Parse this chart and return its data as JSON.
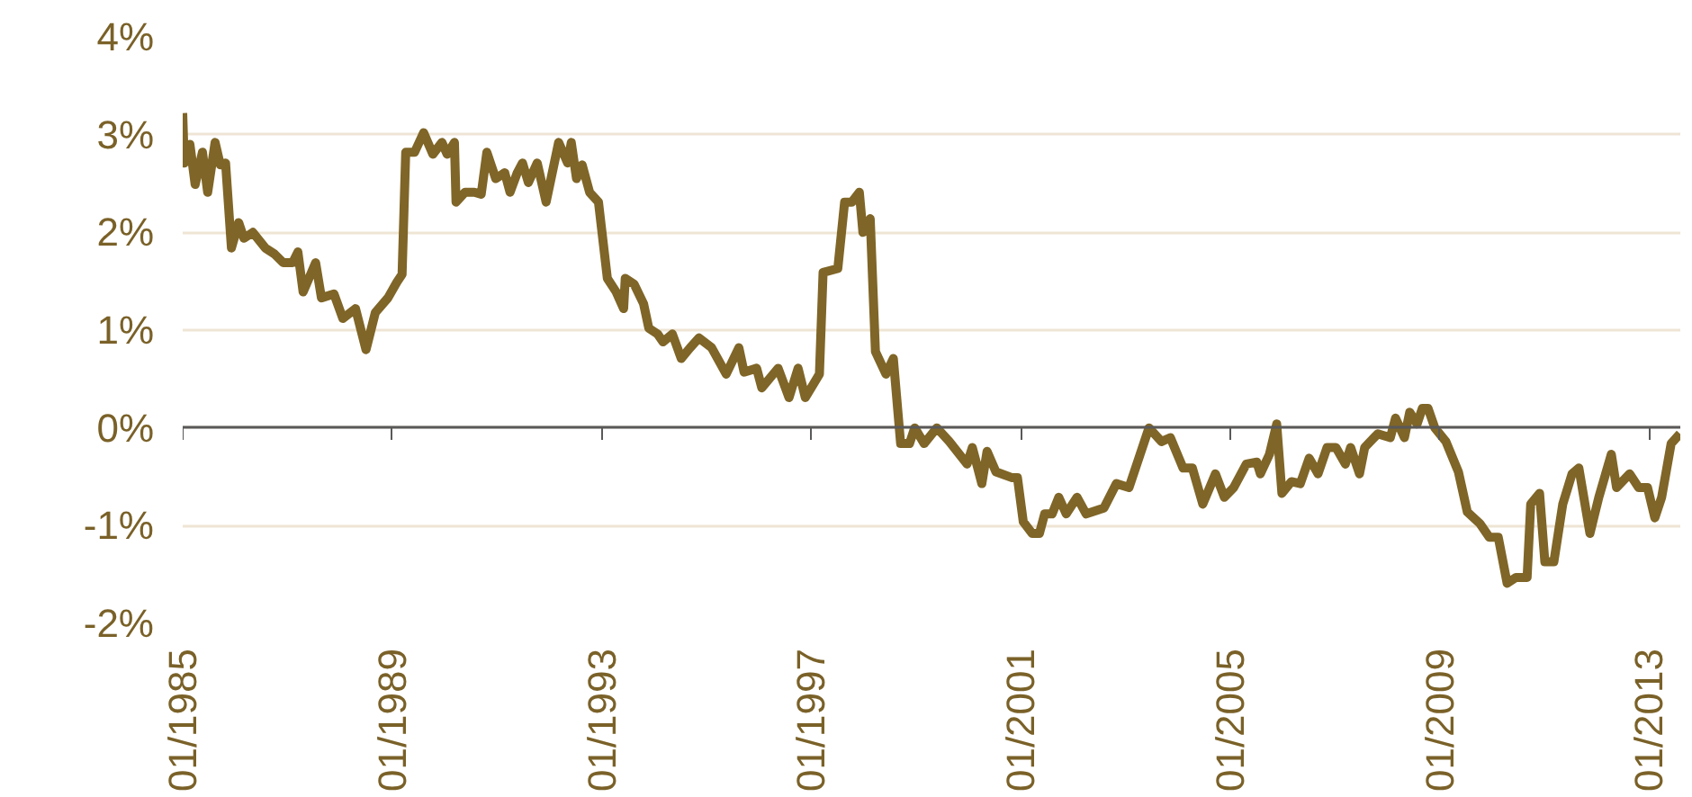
{
  "chart_data": {
    "type": "line",
    "x": [
      "1985-01-01",
      "1985-01-12",
      "1985-02-21",
      "1985-03-27",
      "1985-05-17",
      "1985-06-23",
      "1985-08-14",
      "1985-09-20",
      "1985-10-26",
      "1985-12-06",
      "1986-01-26",
      "1986-03-02",
      "1986-05-03",
      "1986-07-29",
      "1986-10-01",
      "1986-12-02",
      "1987-02-07",
      "1987-03-13",
      "1987-04-19",
      "1987-07-15",
      "1987-08-25",
      "1987-11-21",
      "1988-01-22",
      "1988-04-19",
      "1988-07-01",
      "1988-09-05",
      "1988-12-02",
      "1989-02-03",
      "1989-03-09",
      "1989-04-04",
      "1989-06-05",
      "1989-08-07",
      "1989-10-11",
      "1989-12-13",
      "1990-01-19",
      "1990-03-09",
      "1990-03-20",
      "1990-05-21",
      "1990-07-26",
      "1990-09-13",
      "1990-10-22",
      "1990-12-23",
      "1991-02-25",
      "1991-04-01",
      "1991-05-21",
      "1991-06-27",
      "1991-08-07",
      "1991-10-08",
      "1991-12-09",
      "1992-03-05",
      "1992-05-07",
      "1992-06-02",
      "1992-07-08",
      "1992-08-17",
      "1992-10-08",
      "1992-12-09",
      "1993-02-10",
      "1993-04-11",
      "1993-06-02",
      "1993-06-13",
      "1993-08-14",
      "1993-10-19",
      "1993-11-25",
      "1994-01-26",
      "1994-03-02",
      "1994-05-07",
      "1994-07-08",
      "1994-09-09",
      "1994-11-10",
      "1995-02-07",
      "1995-05-17",
      "1995-08-14",
      "1995-09-20",
      "1995-12-16",
      "1996-01-22",
      "1996-05-14",
      "1996-07-29",
      "1996-10-01",
      "1996-11-21",
      "1997-02-28",
      "1997-03-23",
      "1997-07-04",
      "1997-08-21",
      "1997-10-11",
      "1997-12-02",
      "1997-12-27",
      "1998-02-17",
      "1998-03-23",
      "1998-06-05",
      "1998-07-26",
      "1998-09-16",
      "1998-11-17",
      "1998-12-23",
      "1999-02-28",
      "1999-05-25",
      "1999-08-21",
      "1999-12-23",
      "2000-01-29",
      "2000-04-04",
      "2000-05-10",
      "2000-07-11",
      "2000-11-03",
      "2000-12-09",
      "2001-01-19",
      "2001-03-20",
      "2001-05-10",
      "2001-06-16",
      "2001-08-07",
      "2001-09-23",
      "2001-11-14",
      "2002-01-29",
      "2002-04-01",
      "2002-08-03",
      "2002-10-29",
      "2003-01-26",
      "2003-06-13",
      "2003-09-09",
      "2003-11-10",
      "2004-02-07",
      "2004-04-11",
      "2004-06-23",
      "2004-09-20",
      "2004-11-21",
      "2005-01-26",
      "2005-04-22",
      "2005-07-04",
      "2005-07-29",
      "2005-10-01",
      "2005-11-21",
      "2005-12-27",
      "2006-03-02",
      "2006-05-03",
      "2006-07-04",
      "2006-09-05",
      "2006-11-07",
      "2007-01-08",
      "2007-03-13",
      "2007-04-19",
      "2007-06-20",
      "2007-07-26",
      "2007-10-26",
      "2008-01-22",
      "2008-02-28",
      "2008-04-29",
      "2008-06-05",
      "2008-07-26",
      "2008-09-02",
      "2008-10-11",
      "2008-11-28",
      "2009-02-14",
      "2009-05-10",
      "2009-07-11",
      "2009-10-08",
      "2009-12-13",
      "2010-02-14",
      "2010-04-15",
      "2010-06-16",
      "2010-09-02",
      "2010-09-27",
      "2010-11-28",
      "2011-01-04",
      "2011-03-06",
      "2011-05-07",
      "2011-07-11",
      "2011-08-28",
      "2011-11-14",
      "2012-01-15",
      "2012-04-11",
      "2012-05-17",
      "2012-08-17",
      "2012-10-19",
      "2012-12-20",
      "2013-02-10",
      "2013-03-27",
      "2013-06-02",
      "2013-08-03"
    ],
    "series": [
      {
        "color": "#7f6527",
        "values": [
          3.22,
          2.71,
          2.9,
          2.49,
          2.82,
          2.41,
          2.92,
          2.69,
          2.71,
          1.84,
          2.1,
          1.94,
          2.0,
          1.84,
          1.78,
          1.69,
          1.69,
          1.8,
          1.39,
          1.69,
          1.33,
          1.37,
          1.12,
          1.22,
          0.8,
          1.18,
          1.33,
          1.49,
          1.57,
          2.82,
          2.82,
          3.02,
          2.8,
          2.92,
          2.8,
          2.92,
          2.31,
          2.41,
          2.41,
          2.39,
          2.82,
          2.55,
          2.61,
          2.41,
          2.61,
          2.71,
          2.51,
          2.71,
          2.31,
          2.92,
          2.71,
          2.92,
          2.55,
          2.69,
          2.41,
          2.31,
          1.53,
          1.39,
          1.22,
          1.53,
          1.47,
          1.27,
          1.02,
          0.96,
          0.88,
          0.96,
          0.71,
          0.82,
          0.92,
          0.82,
          0.55,
          0.82,
          0.57,
          0.61,
          0.41,
          0.61,
          0.31,
          0.61,
          0.31,
          0.55,
          1.59,
          1.63,
          2.31,
          2.31,
          2.41,
          2.0,
          2.14,
          0.78,
          0.55,
          0.71,
          -0.16,
          -0.16,
          0.0,
          -0.16,
          0.0,
          -0.14,
          -0.37,
          -0.2,
          -0.57,
          -0.24,
          -0.45,
          -0.51,
          -0.51,
          -0.96,
          -1.08,
          -1.08,
          -0.88,
          -0.88,
          -0.71,
          -0.88,
          -0.71,
          -0.88,
          -0.82,
          -0.57,
          -0.61,
          0.0,
          -0.14,
          -0.1,
          -0.41,
          -0.41,
          -0.78,
          -0.47,
          -0.71,
          -0.61,
          -0.37,
          -0.35,
          -0.47,
          -0.27,
          0.04,
          -0.67,
          -0.55,
          -0.57,
          -0.31,
          -0.47,
          -0.2,
          -0.2,
          -0.37,
          -0.2,
          -0.47,
          -0.2,
          -0.06,
          -0.1,
          0.1,
          -0.1,
          0.16,
          0.04,
          0.2,
          0.2,
          0.0,
          -0.14,
          -0.45,
          -0.86,
          -0.98,
          -1.12,
          -1.12,
          -1.59,
          -1.53,
          -1.53,
          -0.78,
          -0.67,
          -1.37,
          -1.37,
          -0.78,
          -0.47,
          -0.41,
          -1.08,
          -0.71,
          -0.27,
          -0.61,
          -0.47,
          -0.61,
          -0.61,
          -0.92,
          -0.71,
          -0.16,
          -0.06
        ]
      }
    ],
    "xlim": [
      "1985-01-01",
      "2013-08-05"
    ],
    "xticks": [
      {
        "value": "1985-01",
        "label": "01/1985"
      },
      {
        "value": "1989-01",
        "label": "01/1989"
      },
      {
        "value": "1993-01",
        "label": "01/1993"
      },
      {
        "value": "1997-01",
        "label": "01/1997"
      },
      {
        "value": "2001-01",
        "label": "01/2001"
      },
      {
        "value": "2005-01",
        "label": "01/2005"
      },
      {
        "value": "2009-01",
        "label": "01/2009"
      },
      {
        "value": "2013-01",
        "label": "01/2013"
      }
    ],
    "ylim": [
      -2,
      4
    ],
    "yticks": [
      {
        "value": -2,
        "label": "-2%"
      },
      {
        "value": -1,
        "label": "-1%"
      },
      {
        "value": 0,
        "label": "0%"
      },
      {
        "value": 1,
        "label": "1%"
      },
      {
        "value": 2,
        "label": "2%"
      },
      {
        "value": 3,
        "label": "3%"
      },
      {
        "value": 4,
        "label": "4%"
      }
    ],
    "grid": "y",
    "marker": "none",
    "line_style": "solid"
  }
}
